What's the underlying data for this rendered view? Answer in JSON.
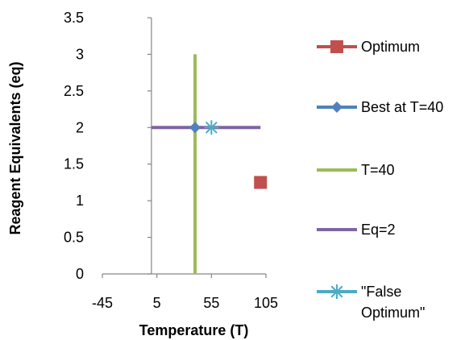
{
  "chart_data": {
    "type": "scatter",
    "title": "",
    "xlabel": "Temperature (T)",
    "ylabel": "Reagent Equivalents (eq)",
    "xlim": [
      -45,
      105
    ],
    "ylim": [
      0,
      3.5
    ],
    "xticks": [
      -45,
      5,
      55,
      105
    ],
    "xtick_labels": [
      "-45",
      "5",
      "55",
      "105"
    ],
    "yticks": [
      0,
      0.5,
      1,
      1.5,
      2,
      2.5,
      3,
      3.5
    ],
    "ytick_labels": [
      "0",
      "0.5",
      "1",
      "1.5",
      "2",
      "2.5",
      "3",
      "3.5"
    ],
    "grid": false,
    "legend_position": "right",
    "series": [
      {
        "name": "Optimum",
        "mode": "markers",
        "marker": "square",
        "color": "#C0504D",
        "points": [
          {
            "x": 100,
            "y": 1.25
          }
        ]
      },
      {
        "name": "Best at T=40",
        "mode": "markers",
        "marker": "diamond",
        "color": "#4F81BD",
        "points": [
          {
            "x": 40,
            "y": 2
          }
        ]
      },
      {
        "name": "T=40",
        "mode": "line",
        "color": "#9BBB59",
        "points": [
          {
            "x": 40,
            "y": 0
          },
          {
            "x": 40,
            "y": 3
          }
        ]
      },
      {
        "name": "Eq=2",
        "mode": "line",
        "color": "#8064A2",
        "points": [
          {
            "x": 0,
            "y": 2
          },
          {
            "x": 100,
            "y": 2
          }
        ]
      },
      {
        "name": "\"False Optimum\"",
        "mode": "markers",
        "marker": "asterisk",
        "color": "#4BACC6",
        "points": [
          {
            "x": 55,
            "y": 2
          }
        ]
      }
    ]
  }
}
